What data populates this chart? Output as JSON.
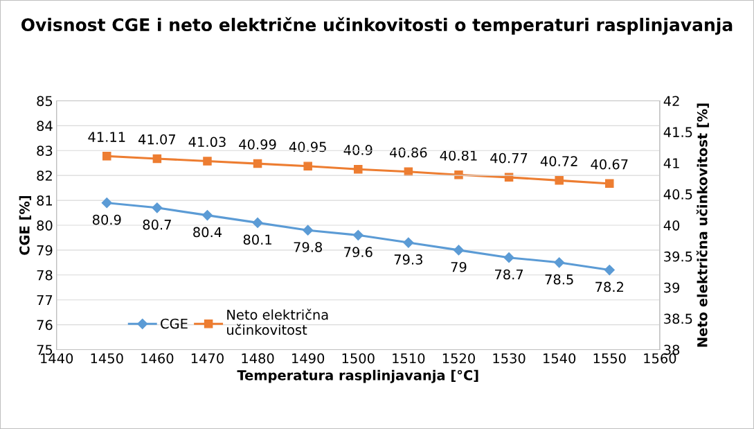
{
  "chart_data": {
    "type": "line",
    "title": "Ovisnost CGE i neto električne učinkovitosti o temperaturi rasplinjavanja",
    "xlabel": "Temperatura rasplinjavanja [°C]",
    "ylabel": "CGE [%]",
    "y2label": "Neto električna učinkovitost [%]",
    "x": [
      1450,
      1460,
      1470,
      1480,
      1490,
      1500,
      1510,
      1520,
      1530,
      1540,
      1550
    ],
    "series": [
      {
        "name": "CGE",
        "color": "#5b9bd5",
        "marker": "diamond",
        "values": [
          80.9,
          80.7,
          80.4,
          80.1,
          79.8,
          79.6,
          79.3,
          79,
          78.7,
          78.5,
          78.2
        ]
      },
      {
        "name": "Neto električna učinkovitost",
        "color": "#ed7d31",
        "marker": "square",
        "axis": "y2",
        "values": [
          41.11,
          41.07,
          41.03,
          40.99,
          40.95,
          40.9,
          40.86,
          40.81,
          40.77,
          40.72,
          40.67
        ]
      }
    ],
    "xlim": [
      1440,
      1560
    ],
    "xticks": [
      1440,
      1450,
      1460,
      1470,
      1480,
      1490,
      1500,
      1510,
      1520,
      1530,
      1540,
      1550,
      1560
    ],
    "ylim": [
      75,
      85
    ],
    "yticks": [
      75,
      76,
      77,
      78,
      79,
      80,
      81,
      82,
      83,
      84,
      85
    ],
    "y2lim": [
      38,
      42
    ],
    "y2ticks": [
      38,
      38.5,
      39,
      39.5,
      40,
      40.5,
      41,
      41.5,
      42
    ],
    "grid": "y",
    "legend": "bottom left",
    "data_labels": true,
    "line_style": "solid"
  }
}
